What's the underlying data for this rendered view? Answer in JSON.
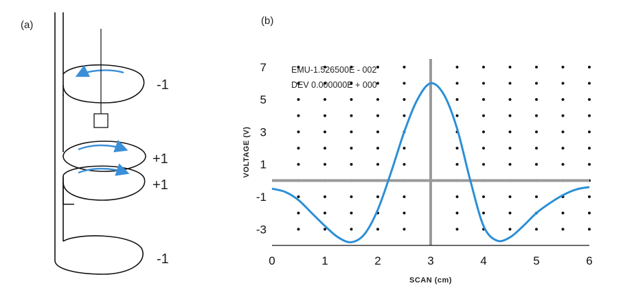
{
  "panel_a": {
    "label": "(a)",
    "coils": [
      {
        "label": "-1"
      },
      {
        "label": "+1"
      },
      {
        "label": "+1"
      },
      {
        "label": "-1"
      }
    ],
    "colors": {
      "arrow": "#3a8fd8",
      "line": "#111111"
    }
  },
  "panel_b": {
    "label": "(b)",
    "readout": {
      "emu": "EMU-1.526500E - 002",
      "dev": "DEV 0.000000E + 000"
    }
  },
  "chart_data": {
    "type": "line",
    "title": "",
    "xlabel": "SCAN (cm)",
    "ylabel": "VOLTAGE (V)",
    "xlim": [
      0,
      6
    ],
    "ylim": [
      -4,
      7.5
    ],
    "x_ticks": [
      "0",
      "1",
      "2",
      "3",
      "4",
      "5",
      "6"
    ],
    "y_ticks": [
      "7",
      "5",
      "3",
      "1",
      "-1",
      "-3"
    ],
    "reference_lines": {
      "x": 3,
      "y": 0
    },
    "grid": "dotted",
    "line_color": "#2b8fd6",
    "series": [
      {
        "x": [
          0,
          0.25,
          0.5,
          0.75,
          1.0,
          1.25,
          1.5,
          1.75,
          2.0,
          2.25,
          2.5,
          2.75,
          3.0,
          3.25,
          3.5,
          3.75,
          4.0,
          4.25,
          4.5,
          4.75,
          5.0,
          5.25,
          5.5,
          5.75,
          6.0
        ],
        "y": [
          -0.5,
          -0.7,
          -1.2,
          -2.0,
          -2.8,
          -3.5,
          -3.8,
          -3.3,
          -1.8,
          0.5,
          3.0,
          5.0,
          6.0,
          5.3,
          3.2,
          0.0,
          -2.8,
          -3.7,
          -3.5,
          -2.8,
          -2.0,
          -1.4,
          -0.9,
          -0.55,
          -0.4
        ]
      }
    ]
  }
}
